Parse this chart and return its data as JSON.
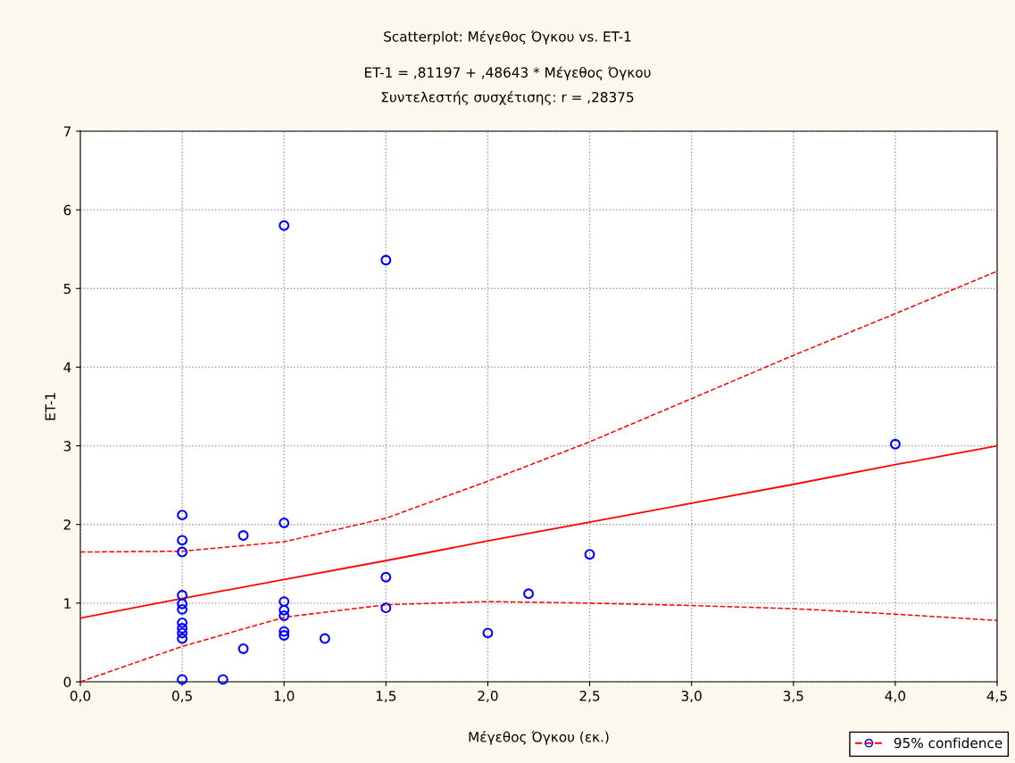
{
  "chart_data": {
    "type": "scatter",
    "title": "Scatterplot: Μέγεθος Όγκου vs. ET-1",
    "subtitle": "ET-1 = ,81197 + ,48643 * Μέγεθος Όγκου\nΣυντελεστής συσχέτισης: r = ,28375",
    "xlabel": "Μέγεθος Όγκου (εκ.)",
    "ylabel": "ET-1",
    "xlim": [
      0,
      4.5
    ],
    "ylim": [
      0,
      7
    ],
    "xticks": [
      {
        "value": 0,
        "label": "0,0"
      },
      {
        "value": 0.5,
        "label": "0,5"
      },
      {
        "value": 1,
        "label": "1,0"
      },
      {
        "value": 1.5,
        "label": "1,5"
      },
      {
        "value": 2,
        "label": "2,0"
      },
      {
        "value": 2.5,
        "label": "2,5"
      },
      {
        "value": 3,
        "label": "3,0"
      },
      {
        "value": 3.5,
        "label": "3,5"
      },
      {
        "value": 4,
        "label": "4,0"
      },
      {
        "value": 4.5,
        "label": "4,5"
      }
    ],
    "yticks": [
      0,
      1,
      2,
      3,
      4,
      5,
      6,
      7
    ],
    "grid": true,
    "legend": "bottom right",
    "series": [
      {
        "marker": "circle",
        "color": "#0000ff",
        "x": [
          0.5,
          0.5,
          0.5,
          0.5,
          0.5,
          0.5,
          0.5,
          0.5,
          0.5,
          0.5,
          0.5,
          0.7,
          0.8,
          0.8,
          1.0,
          1.0,
          1.0,
          1.0,
          1.0,
          1.0,
          1.0,
          1.2,
          1.5,
          1.5,
          1.5,
          2.0,
          2.2,
          2.5,
          4.0
        ],
        "values": [
          2.12,
          1.8,
          1.65,
          1.1,
          0.99,
          0.92,
          0.75,
          0.68,
          0.62,
          0.55,
          0.03,
          0.03,
          1.86,
          0.42,
          5.8,
          2.02,
          1.02,
          0.91,
          0.84,
          0.64,
          0.59,
          0.55,
          5.36,
          1.33,
          0.94,
          0.62,
          1.12,
          1.62,
          3.02
        ]
      },
      {
        "type": "line",
        "name": "95% confidence",
        "color": "#ff0000",
        "line_style": "solid",
        "marker": "none",
        "x": [
          0,
          0.5,
          1,
          1.5,
          2,
          2.5,
          3,
          3.5,
          4,
          4.5
        ],
        "values": [
          0.81,
          1.06,
          1.3,
          1.54,
          1.79,
          2.03,
          2.27,
          2.51,
          2.76,
          3.0
        ]
      },
      {
        "type": "line",
        "color": "#ff0000",
        "line_style": "dashed",
        "marker": "none",
        "x": [
          0,
          0.5,
          1,
          1.5,
          2,
          2.5,
          3,
          3.5,
          4,
          4.5
        ],
        "values": [
          0.0,
          0.45,
          0.82,
          0.98,
          1.02,
          1.0,
          0.97,
          0.93,
          0.86,
          0.78
        ]
      },
      {
        "type": "line",
        "color": "#ff0000",
        "line_style": "dashed",
        "marker": "none",
        "x": [
          0,
          0.5,
          1,
          1.5,
          2,
          2.5,
          3,
          3.5,
          4,
          4.5
        ],
        "values": [
          1.65,
          1.66,
          1.78,
          2.08,
          2.55,
          3.05,
          3.6,
          4.15,
          4.68,
          5.22
        ]
      }
    ]
  }
}
